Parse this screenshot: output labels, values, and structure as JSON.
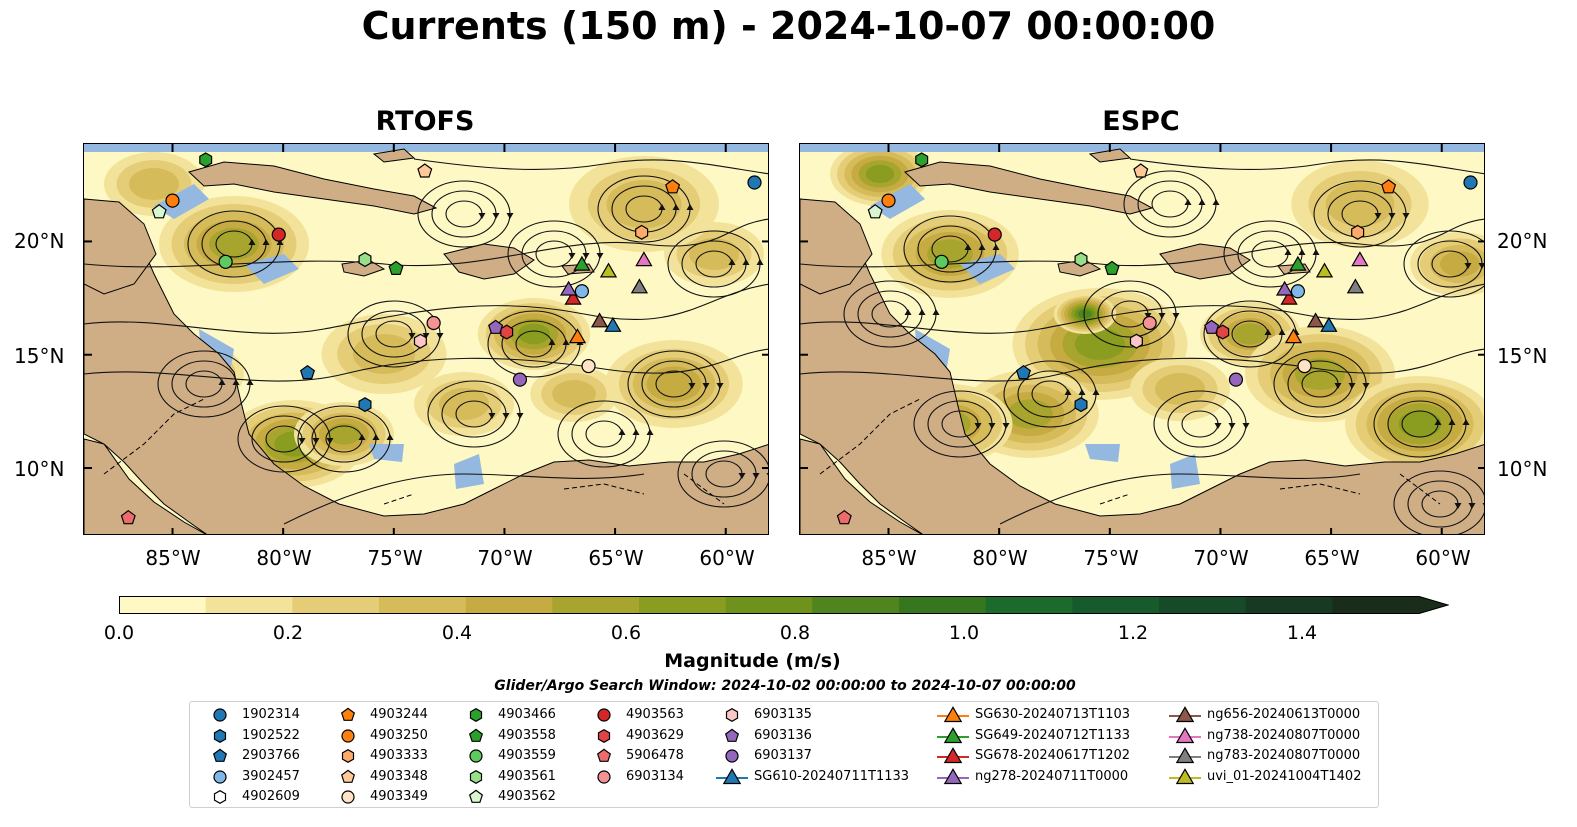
{
  "title": "Currents (150 m) - 2024-10-07 00:00:00",
  "panels": [
    {
      "title": "RTOFS",
      "variant": 0
    },
    {
      "title": "ESPC",
      "variant": 1
    }
  ],
  "lat_ticks": [
    "20°N",
    "15°N",
    "10°N"
  ],
  "lon_ticks": [
    "85°W",
    "80°W",
    "75°W",
    "70°W",
    "65°W",
    "60°W"
  ],
  "colorbar": {
    "label": "Magnitude (m/s)",
    "ticks": [
      "0.0",
      "0.2",
      "0.4",
      "0.6",
      "0.8",
      "1.0",
      "1.2",
      "1.4"
    ],
    "colors": [
      "#fef8c4",
      "#f3e39a",
      "#e5cd77",
      "#d6bb5a",
      "#c6ab43",
      "#a8a52e",
      "#8a9d20",
      "#6e921c",
      "#4f841e",
      "#35761f",
      "#1c6a2c",
      "#155b2b",
      "#174a28",
      "#193a22",
      "#1a2d1b"
    ]
  },
  "search_window": "Glider/Argo Search Window: 2024-10-02 00:00:00 to 2024-10-07 00:00:00",
  "legend": [
    {
      "label": "1902314",
      "shape": "circle",
      "color": "#1f77b4"
    },
    {
      "label": "1902522",
      "shape": "hexagon",
      "color": "#1f77b4"
    },
    {
      "label": "2903766",
      "shape": "pentagon",
      "color": "#1f77b4"
    },
    {
      "label": "3902457",
      "shape": "circle",
      "color": "#7fb8e8"
    },
    {
      "label": "4902609",
      "shape": "hexagon",
      "color": "#ffffff"
    },
    {
      "label": "4903244",
      "shape": "pentagon",
      "color": "#ff7f0e"
    },
    {
      "label": "4903250",
      "shape": "circle",
      "color": "#ff7f0e"
    },
    {
      "label": "4903333",
      "shape": "hexagon",
      "color": "#ffaa6a"
    },
    {
      "label": "4903348",
      "shape": "pentagon",
      "color": "#ffc898"
    },
    {
      "label": "4903349",
      "shape": "circle",
      "color": "#ffe3c4"
    },
    {
      "label": "4903466",
      "shape": "hexagon",
      "color": "#2ca02c"
    },
    {
      "label": "4903558",
      "shape": "pentagon",
      "color": "#2ca02c"
    },
    {
      "label": "4903559",
      "shape": "circle",
      "color": "#5ec95e"
    },
    {
      "label": "4903561",
      "shape": "hexagon",
      "color": "#98df8a"
    },
    {
      "label": "4903562",
      "shape": "pentagon",
      "color": "#d8f7cf"
    },
    {
      "label": "4903563",
      "shape": "circle",
      "color": "#d62728"
    },
    {
      "label": "4903629",
      "shape": "hexagon",
      "color": "#e04545"
    },
    {
      "label": "5906478",
      "shape": "pentagon",
      "color": "#ec6b6b"
    },
    {
      "label": "6903134",
      "shape": "circle",
      "color": "#f49393"
    },
    {
      "label": "6903135",
      "shape": "hexagon",
      "color": "#fbc6c6"
    },
    {
      "label": "6903136",
      "shape": "pentagon",
      "color": "#9467bd"
    },
    {
      "label": "6903137",
      "shape": "circle",
      "color": "#9467bd"
    },
    {
      "label": "SG610-20240711T1133",
      "shape": "triangle-line",
      "color": "#1f77b4"
    },
    {
      "label": "SG630-20240713T1103",
      "shape": "triangle-line",
      "color": "#ff7f0e"
    },
    {
      "label": "SG649-20240712T1133",
      "shape": "triangle-line",
      "color": "#2ca02c"
    },
    {
      "label": "SG678-20240617T1202",
      "shape": "triangle-line",
      "color": "#d62728"
    },
    {
      "label": "ng278-20240711T0000",
      "shape": "triangle-line",
      "color": "#9467bd"
    },
    {
      "label": "ng656-20240613T0000",
      "shape": "triangle-line",
      "color": "#8c564b"
    },
    {
      "label": "ng738-20240807T0000",
      "shape": "triangle-line",
      "color": "#e377c2"
    },
    {
      "label": "ng783-20240807T0000",
      "shape": "triangle-line",
      "color": "#7f7f7f"
    },
    {
      "label": "uvi_01-20241004T1402",
      "shape": "triangle-line",
      "color": "#bcbd22"
    }
  ],
  "map_markers": [
    {
      "lon": -58.7,
      "lat": 22.6,
      "id": "1902314"
    },
    {
      "lon": -76.3,
      "lat": 12.8,
      "id": "1902522"
    },
    {
      "lon": -78.9,
      "lat": 14.2,
      "id": "2903766"
    },
    {
      "lon": -66.5,
      "lat": 17.8,
      "id": "3902457"
    },
    {
      "lon": -62.4,
      "lat": 22.4,
      "id": "4903244"
    },
    {
      "lon": -85.0,
      "lat": 21.8,
      "id": "4903250"
    },
    {
      "lon": -63.8,
      "lat": 20.4,
      "id": "4903333"
    },
    {
      "lon": -73.6,
      "lat": 23.1,
      "id": "4903348"
    },
    {
      "lon": -66.2,
      "lat": 14.5,
      "id": "4903349"
    },
    {
      "lon": -83.5,
      "lat": 23.6,
      "id": "4903466"
    },
    {
      "lon": -74.9,
      "lat": 18.8,
      "id": "4903558"
    },
    {
      "lon": -82.6,
      "lat": 19.1,
      "id": "4903559"
    },
    {
      "lon": -76.3,
      "lat": 19.2,
      "id": "4903561"
    },
    {
      "lon": -85.6,
      "lat": 21.3,
      "id": "4903562"
    },
    {
      "lon": -80.2,
      "lat": 20.3,
      "id": "4903563"
    },
    {
      "lon": -69.9,
      "lat": 16.0,
      "id": "4903629"
    },
    {
      "lon": -87.0,
      "lat": 7.8,
      "id": "5906478"
    },
    {
      "lon": -73.2,
      "lat": 16.4,
      "id": "6903134"
    },
    {
      "lon": -73.8,
      "lat": 15.6,
      "id": "6903135"
    },
    {
      "lon": -70.4,
      "lat": 16.2,
      "id": "6903136"
    },
    {
      "lon": -69.3,
      "lat": 13.9,
      "id": "6903137"
    },
    {
      "lon": -65.1,
      "lat": 16.3,
      "id": "SG610-20240711T1133"
    },
    {
      "lon": -66.7,
      "lat": 15.8,
      "id": "SG630-20240713T1103"
    },
    {
      "lon": -66.5,
      "lat": 19.0,
      "id": "SG649-20240712T1133"
    },
    {
      "lon": -66.9,
      "lat": 17.5,
      "id": "SG678-20240617T1202"
    },
    {
      "lon": -67.1,
      "lat": 17.9,
      "id": "ng278-20240711T0000"
    },
    {
      "lon": -65.7,
      "lat": 16.5,
      "id": "ng656-20240613T0000"
    },
    {
      "lon": -63.7,
      "lat": 19.2,
      "id": "ng738-20240807T0000"
    },
    {
      "lon": -63.9,
      "lat": 18.0,
      "id": "ng783-20240807T0000"
    },
    {
      "lon": -65.3,
      "lat": 18.7,
      "id": "uvi_01-20241004T1402"
    }
  ],
  "extent": {
    "lon_min": -89,
    "lon_max": -58,
    "lat_min": 7,
    "lat_max": 24.3
  }
}
